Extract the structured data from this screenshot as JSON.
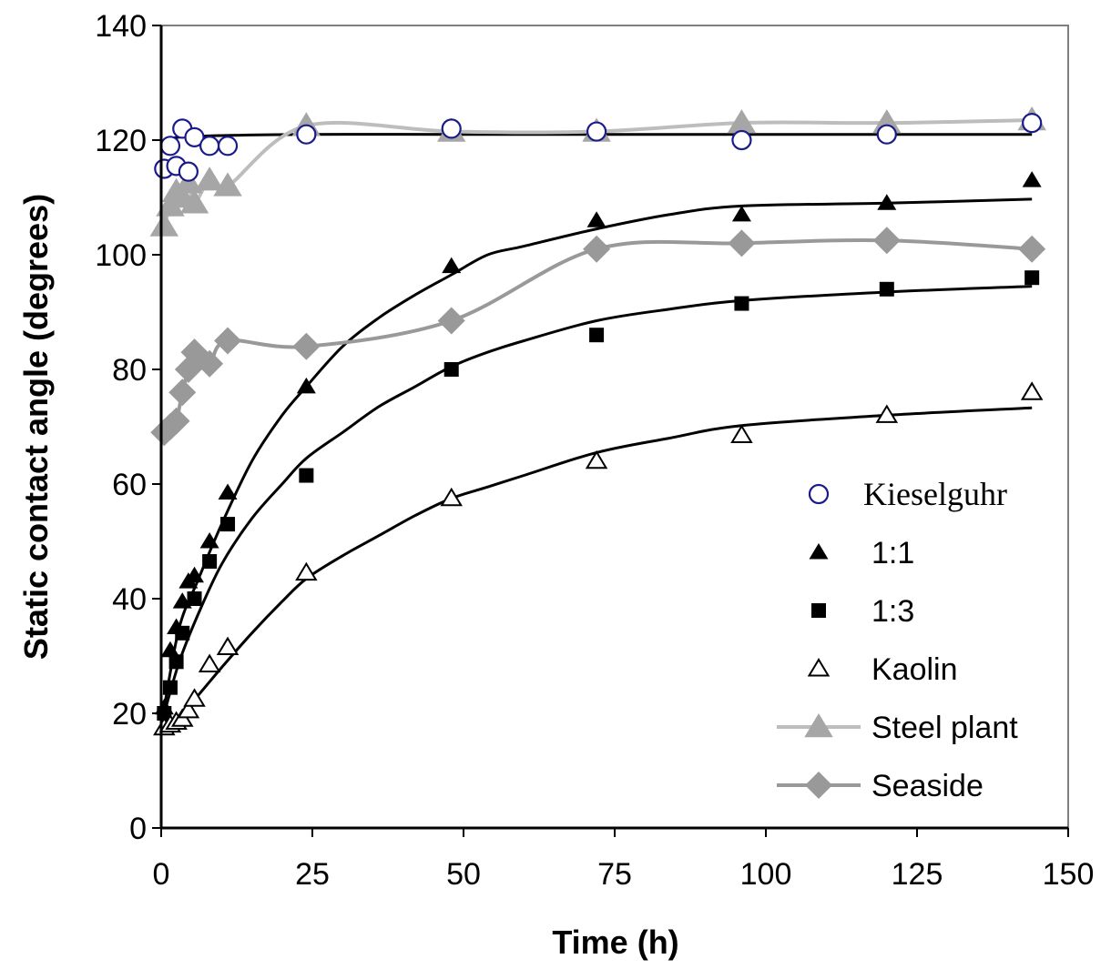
{
  "chart_data": {
    "type": "scatter",
    "title": "",
    "xlabel": "Time (h)",
    "ylabel": "Static contact angle (degrees)",
    "xlim": [
      0,
      150
    ],
    "ylim": [
      0,
      140
    ],
    "xticks": [
      0,
      25,
      50,
      75,
      100,
      125,
      150
    ],
    "yticks": [
      0,
      20,
      40,
      60,
      80,
      100,
      120,
      140
    ],
    "grid": false,
    "legend_position": "right",
    "series": [
      {
        "name": "Kieselguhr",
        "marker": "circle-open",
        "color": "#1a1a8c",
        "x": [
          0.5,
          1.5,
          2.5,
          3.5,
          4.5,
          5.5,
          8,
          11,
          24,
          48,
          72,
          96,
          120,
          144
        ],
        "y": [
          115,
          119,
          115.5,
          122,
          114.5,
          120.5,
          119,
          119,
          121,
          122,
          121.5,
          120,
          121,
          123
        ],
        "fit": {
          "x": [
            0.5,
            3,
            10,
            24,
            48,
            72,
            96,
            120,
            144
          ],
          "y": [
            120,
            120.5,
            120.8,
            121,
            121,
            121,
            121,
            121,
            121
          ],
          "color": "#000000"
        }
      },
      {
        "name": "1:1",
        "marker": "triangle-filled",
        "color": "#000000",
        "x": [
          0.5,
          1.5,
          2.5,
          3.5,
          4.5,
          5.5,
          8,
          11,
          24,
          48,
          72,
          96,
          120,
          144
        ],
        "y": [
          21,
          31,
          35,
          39.5,
          43,
          44,
          50,
          58.5,
          77,
          98,
          106,
          107,
          109,
          113
        ],
        "fit": {
          "x": [
            0.5,
            3,
            6,
            10,
            15,
            20,
            24,
            30,
            36,
            42,
            48,
            54,
            60,
            72,
            84,
            96,
            120,
            144
          ],
          "y": [
            21,
            35,
            43,
            53,
            64,
            72,
            77,
            84,
            89,
            93,
            96.5,
            100,
            101.5,
            104.5,
            107,
            108.5,
            109,
            109.7
          ],
          "color": "#000000"
        }
      },
      {
        "name": "1:3",
        "marker": "square-filled",
        "color": "#000000",
        "x": [
          0.5,
          1.5,
          2.5,
          3.5,
          5.5,
          8,
          11,
          24,
          48,
          72,
          96,
          120,
          144
        ],
        "y": [
          20,
          24.5,
          29,
          34,
          40,
          46.5,
          53,
          61.5,
          80,
          86,
          91.5,
          94,
          96
        ],
        "fit": {
          "x": [
            0.5,
            3,
            6,
            10,
            15,
            20,
            24,
            30,
            36,
            42,
            48,
            54,
            60,
            72,
            84,
            96,
            120,
            144
          ],
          "y": [
            20,
            29,
            37,
            46,
            54,
            60,
            64.5,
            69,
            73.5,
            77,
            80.5,
            83,
            85,
            88.5,
            90.5,
            92,
            93.5,
            94.5
          ],
          "color": "#000000"
        }
      },
      {
        "name": "Kaolin",
        "marker": "triangle-open",
        "color": "#000000",
        "x": [
          0.5,
          1.5,
          2.5,
          3.5,
          4.5,
          5.5,
          8,
          11,
          24,
          48,
          72,
          96,
          120,
          144
        ],
        "y": [
          17.5,
          18,
          18.5,
          19,
          20.5,
          22.5,
          28.5,
          31.5,
          44.5,
          57.5,
          64,
          68.5,
          72,
          76
        ],
        "fit": {
          "x": [
            0.5,
            3,
            6,
            10,
            15,
            20,
            24,
            30,
            36,
            42,
            48,
            54,
            60,
            72,
            84,
            96,
            120,
            144
          ],
          "y": [
            17.5,
            19.5,
            23,
            28,
            34,
            39.5,
            43.5,
            47.5,
            51,
            54.5,
            57.5,
            59.5,
            61.5,
            65.5,
            68,
            70.2,
            72,
            73.3
          ],
          "color": "#000000"
        }
      },
      {
        "name": "Steel plant",
        "marker": "triangle-filled",
        "color": "#a6a6a6",
        "line_color": "#bdbdbd",
        "x": [
          0.5,
          1.5,
          2.5,
          3.5,
          4.5,
          5.5,
          8,
          11,
          24,
          48,
          72,
          96,
          120,
          144
        ],
        "y": [
          105,
          108.5,
          111,
          110,
          112.5,
          109,
          113,
          112,
          122.5,
          121.5,
          121.5,
          123,
          123,
          123.5
        ]
      },
      {
        "name": "Seaside",
        "marker": "diamond-filled",
        "color": "#999999",
        "line_color": "#999999",
        "x": [
          0.5,
          1.5,
          2.5,
          3.5,
          4.5,
          5.5,
          8,
          11,
          24,
          48,
          72,
          96,
          120,
          144
        ],
        "y": [
          69,
          70,
          71,
          76,
          80,
          83,
          81,
          85,
          84,
          88.5,
          101,
          102,
          102.5,
          101
        ]
      }
    ]
  }
}
